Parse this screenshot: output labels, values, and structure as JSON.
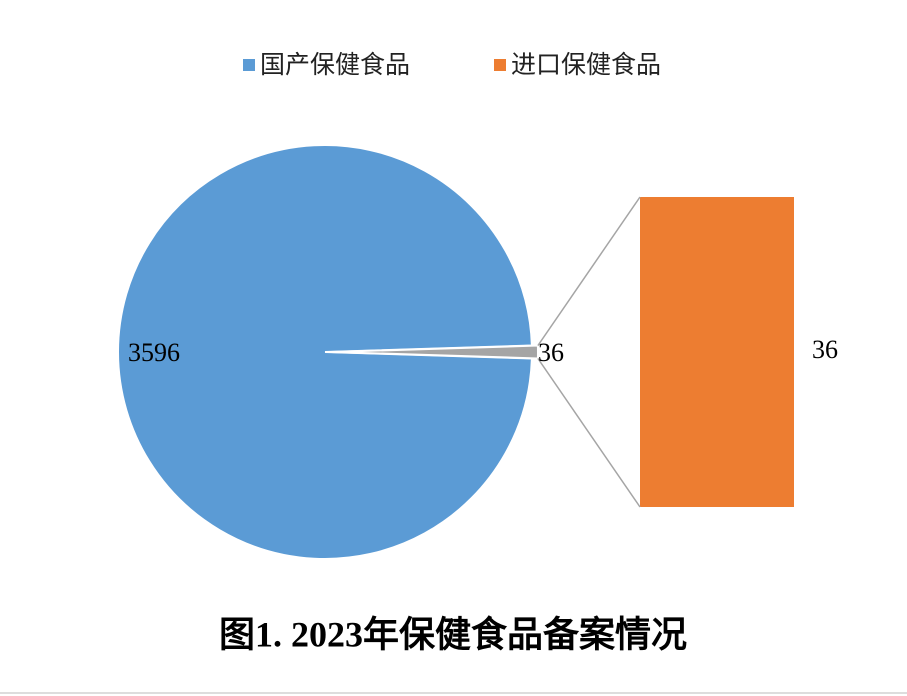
{
  "chart_data": {
    "type": "pie_of_bar",
    "title": "图1. 2023年保健食品备案情况",
    "legend": [
      {
        "name": "国产保健食品",
        "color": "#5b9bd5"
      },
      {
        "name": "进口保健食品",
        "color": "#ed7d31"
      }
    ],
    "pie": {
      "values": [
        3596,
        36
      ],
      "colors": [
        "#5b9bd5",
        "#a5a5a5"
      ]
    },
    "bar": {
      "values": [
        36
      ],
      "colors": [
        "#ed7d31"
      ]
    }
  }
}
